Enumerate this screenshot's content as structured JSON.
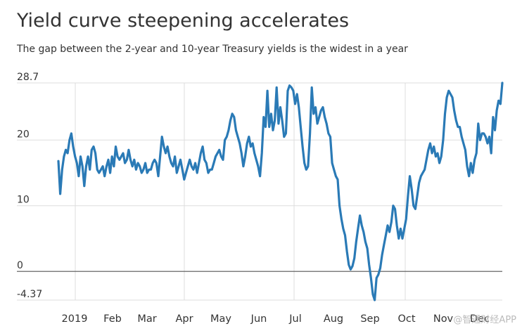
{
  "chart_data": {
    "type": "line",
    "title": "Yield curve steepening accelerates",
    "subtitle": "The gap between the 2-year and 10-year Treasury yields is the widest in a year",
    "y_ticks": [
      {
        "value": 28.7,
        "label": "28.7"
      },
      {
        "value": 20,
        "label": "20"
      },
      {
        "value": 10,
        "label": "10"
      },
      {
        "value": 0,
        "label": "0"
      },
      {
        "value": -4.37,
        "label": "-4.37"
      }
    ],
    "ylim": [
      -4.37,
      28.7
    ],
    "x_ticks": [
      "2019",
      "Feb",
      "Mar",
      "Apr",
      "May",
      "Jun",
      "Jul",
      "Aug",
      "Sep",
      "Oct",
      "Nov",
      "Dec"
    ],
    "grid": true,
    "line_color": "#2a7ab6",
    "series": [
      {
        "values": [
          16.8,
          11.8,
          15.5,
          17.5,
          18.5,
          18.0,
          20.0,
          21.0,
          19.0,
          17.5,
          16.5,
          14.5,
          17.5,
          16.0,
          13.0,
          16.0,
          17.5,
          15.5,
          18.5,
          19.0,
          18.0,
          15.5,
          15.0,
          15.5,
          16.0,
          14.5,
          16.0,
          17.0,
          15.0,
          17.5,
          16.0,
          19.0,
          17.5,
          17.0,
          17.5,
          18.0,
          16.5,
          17.0,
          18.5,
          17.0,
          16.0,
          17.0,
          15.5,
          16.5,
          16.0,
          15.0,
          15.5,
          16.5,
          15.0,
          15.5,
          15.5,
          16.5,
          17.0,
          16.5,
          14.5,
          17.5,
          20.5,
          19.0,
          18.0,
          19.0,
          17.5,
          16.5,
          16.0,
          17.5,
          15.0,
          16.0,
          17.0,
          15.5,
          14.0,
          15.0,
          16.0,
          17.0,
          16.0,
          15.5,
          16.5,
          15.0,
          16.5,
          18.0,
          19.0,
          17.0,
          16.5,
          15.0,
          15.5,
          15.5,
          16.5,
          17.5,
          18.0,
          18.5,
          17.5,
          17.0,
          20.0,
          20.5,
          21.5,
          23.0,
          24.0,
          23.5,
          21.5,
          20.5,
          19.5,
          18.0,
          16.0,
          17.5,
          19.5,
          20.5,
          19.0,
          19.5,
          18.0,
          17.0,
          16.0,
          14.5,
          18.0,
          23.5,
          22.0,
          27.5,
          22.0,
          24.0,
          21.5,
          23.0,
          28.0,
          22.5,
          25.0,
          23.0,
          20.5,
          21.0,
          27.5,
          28.3,
          28.0,
          27.5,
          25.5,
          27.0,
          25.0,
          22.0,
          19.0,
          16.5,
          15.5,
          16.0,
          21.0,
          28.0,
          24.0,
          25.0,
          22.5,
          23.5,
          24.5,
          25.0,
          23.5,
          22.5,
          21.0,
          20.5,
          16.5,
          15.5,
          14.5,
          14.0,
          10.0,
          8.0,
          6.5,
          5.5,
          3.0,
          1.0,
          0.3,
          0.8,
          2.0,
          4.5,
          6.5,
          8.5,
          7.0,
          6.0,
          4.5,
          3.5,
          1.0,
          -1.0,
          -3.5,
          -4.37,
          -1.0,
          -0.5,
          0.5,
          2.5,
          4.0,
          5.5,
          7.0,
          6.0,
          7.5,
          10.0,
          9.5,
          7.0,
          5.0,
          6.5,
          5.0,
          6.5,
          8.0,
          11.5,
          14.5,
          12.5,
          10.0,
          9.5,
          11.5,
          13.5,
          14.5,
          15.0,
          15.5,
          17.0,
          18.5,
          19.5,
          18.0,
          19.0,
          17.5,
          18.0,
          16.5,
          17.5,
          20.0,
          24.0,
          26.5,
          27.5,
          27.0,
          26.5,
          24.5,
          23.0,
          22.0,
          22.0,
          20.5,
          19.5,
          18.5,
          16.0,
          14.5,
          16.5,
          15.0,
          17.0,
          18.0,
          22.5,
          20.0,
          21.0,
          21.0,
          20.5,
          19.5,
          20.5,
          18.0,
          23.5,
          21.5,
          24.5,
          26.0,
          25.5,
          28.7
        ]
      }
    ]
  }
}
